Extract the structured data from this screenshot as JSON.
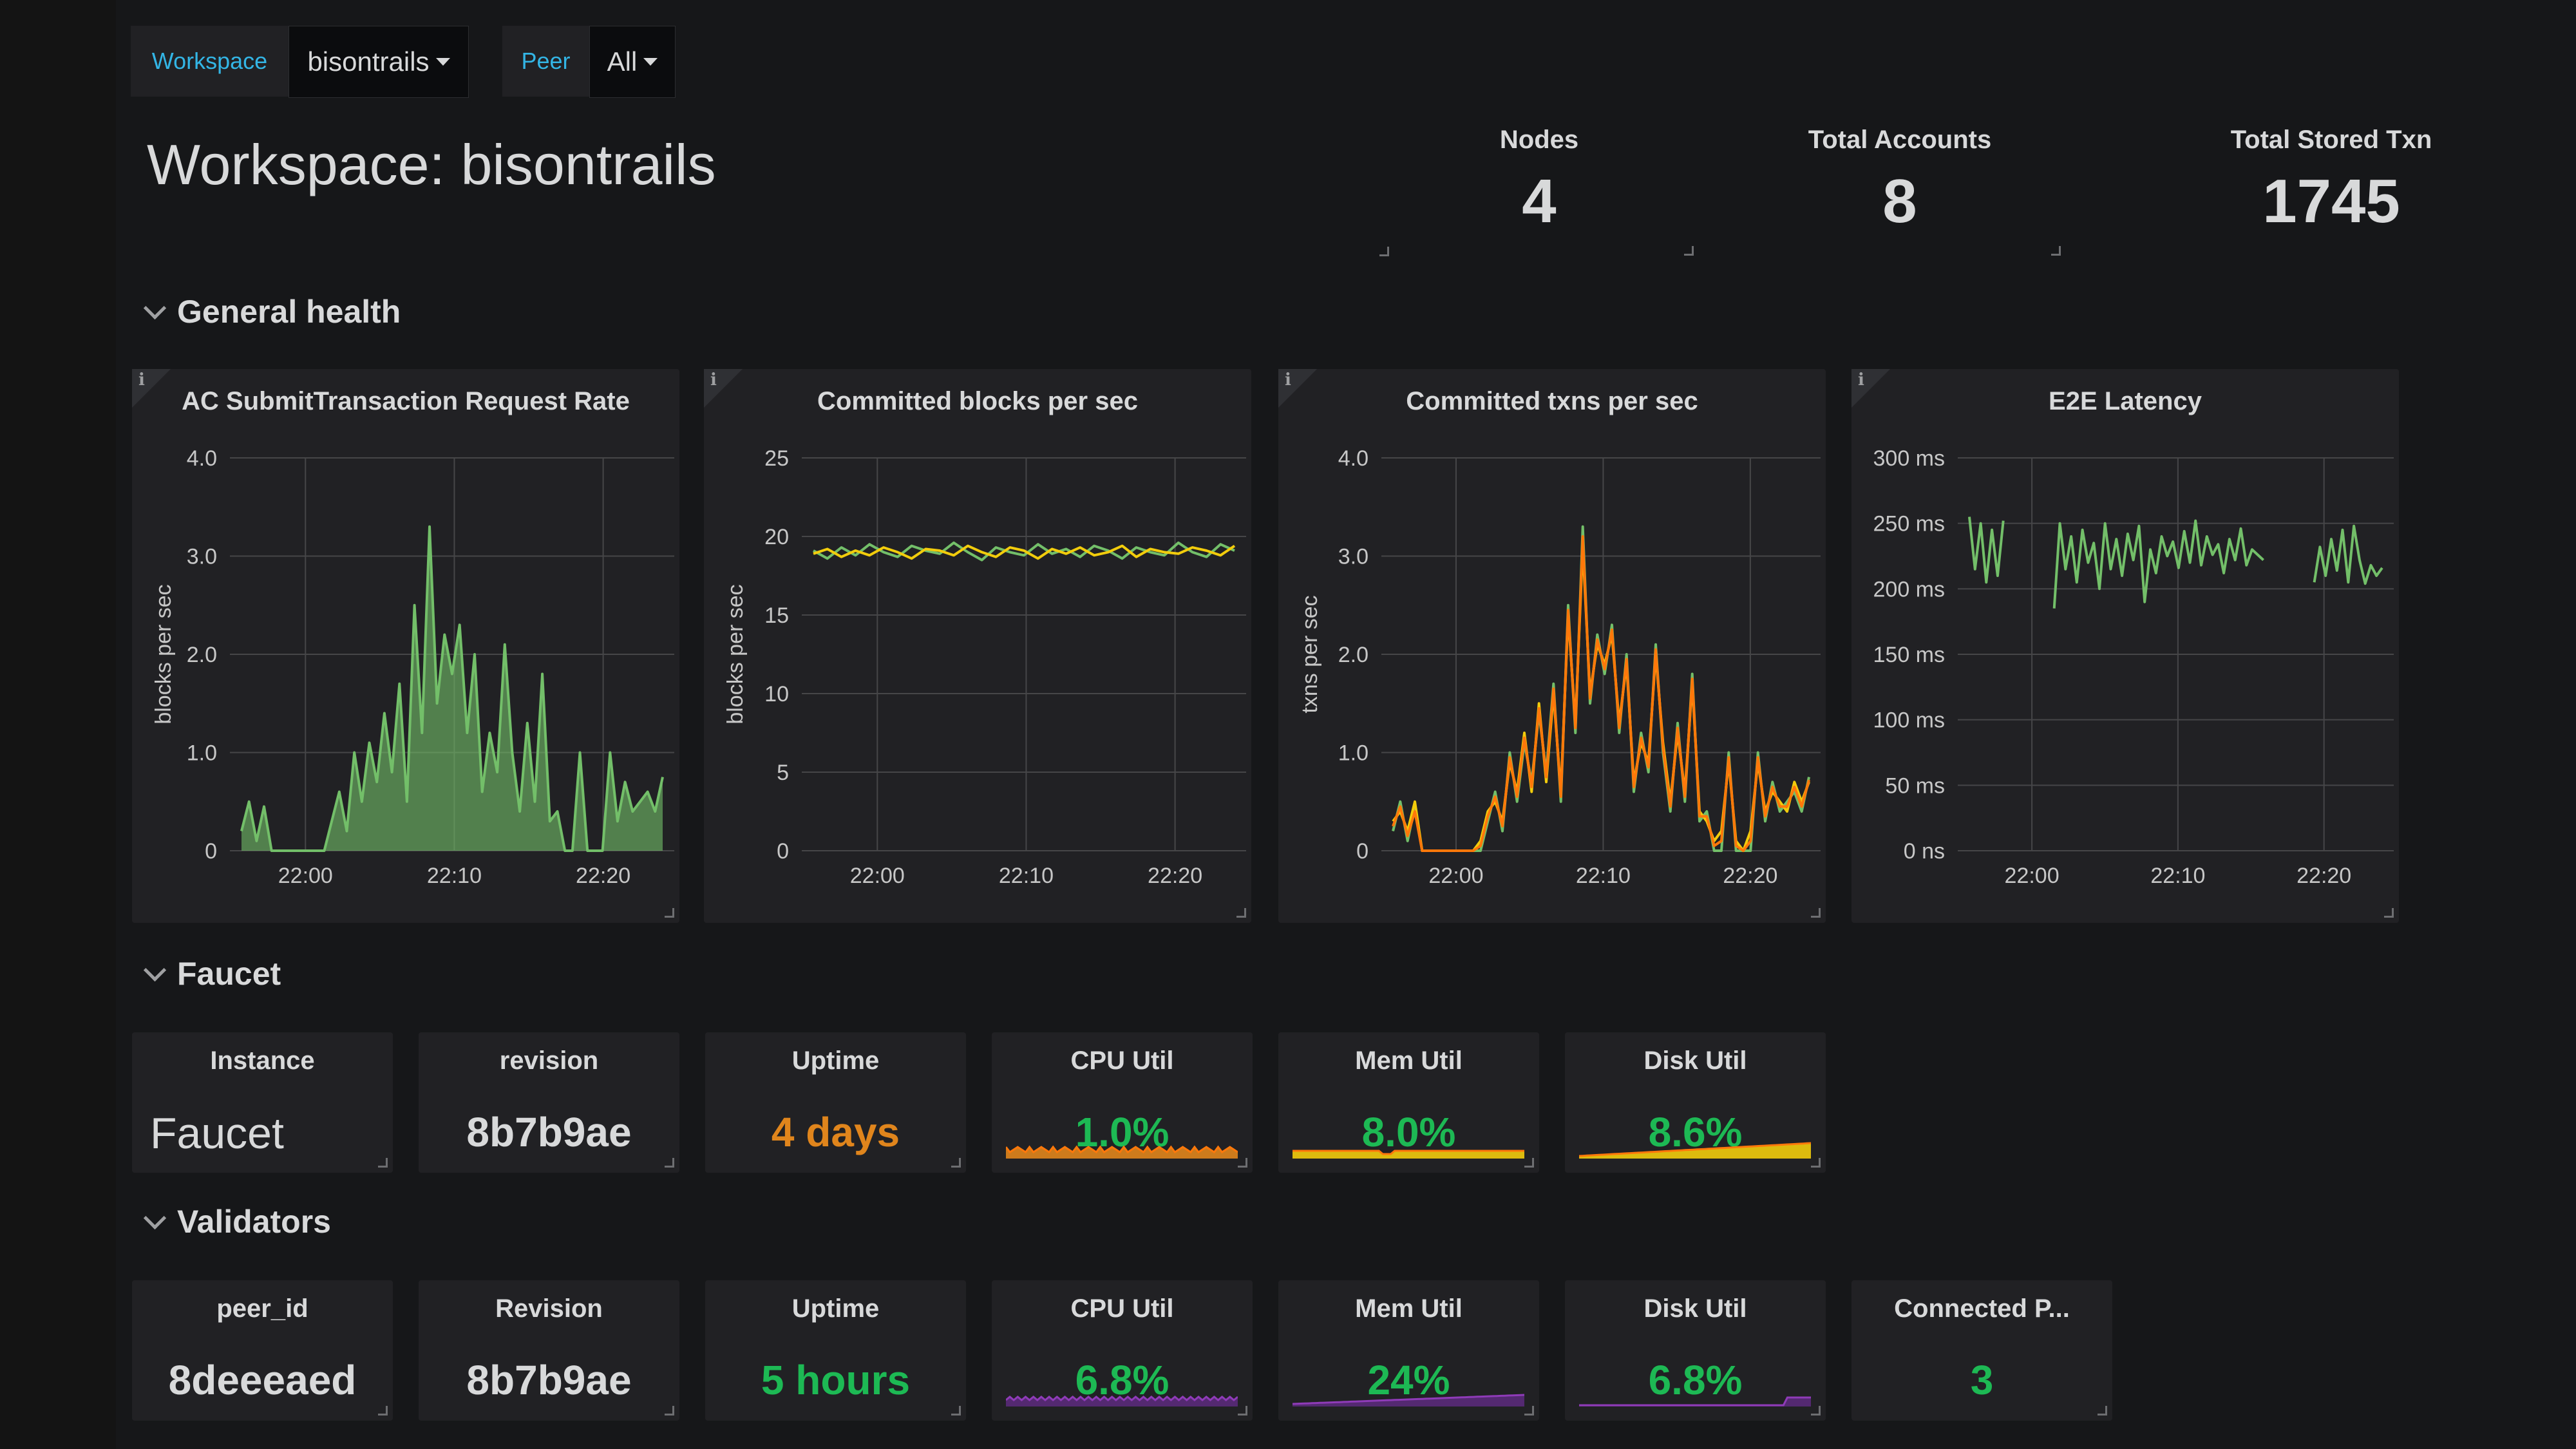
{
  "variables": [
    {
      "label": "Workspace",
      "value": "bisontrails"
    },
    {
      "label": "Peer",
      "value": "All"
    }
  ],
  "dashboard_title": "Workspace: bisontrails",
  "stats": [
    {
      "title": "Nodes",
      "value": "4"
    },
    {
      "title": "Total Accounts",
      "value": "8"
    },
    {
      "title": "Total Stored Txn",
      "value": "1745"
    }
  ],
  "rows": {
    "general": "General health",
    "faucet": "Faucet",
    "validators": "Validators"
  },
  "colors": {
    "green": "#73bf69",
    "green_text": "#1db954",
    "yellow": "#f2cc0c",
    "orange": "#ff780a",
    "uptime_orange": "#e0851c",
    "purple": "#8f3bb8",
    "grid": "#464648",
    "axis_text": "#c7c7c7"
  },
  "chart_data": [
    {
      "type": "area",
      "title": "AC SubmitTransaction Request Rate",
      "ylabel": "blocks per sec",
      "yticks": [
        "0",
        "1.0",
        "2.0",
        "3.0",
        "4.0"
      ],
      "ylim": [
        0,
        4
      ],
      "xticks": [
        "22:00",
        "22:10",
        "22:20"
      ],
      "series": [
        {
          "color": "#73bf69",
          "fill": true,
          "x": [
            0,
            0.5,
            1,
            1.5,
            2,
            2.5,
            3,
            3.5,
            4,
            5,
            6,
            7,
            8,
            8.5,
            9,
            9.5,
            10,
            10.5,
            11,
            11.5,
            12,
            12.5,
            13,
            13.5,
            14,
            14.5,
            15,
            15.5,
            16,
            16.5,
            17,
            17.5,
            18,
            18.5,
            19,
            19.5,
            20,
            20.5,
            21,
            21.5,
            22,
            22.5,
            23,
            23.5,
            24,
            24.5,
            25,
            25.5,
            26,
            26.5,
            27,
            27.5,
            28,
            28.5,
            29,
            29.5,
            30
          ],
          "values": [
            0.2,
            0.5,
            0.1,
            0.45,
            0.0,
            0.0,
            0.0,
            0.0,
            0.0,
            0.0,
            0.0,
            0.0,
            0.3,
            0.6,
            0.2,
            1.0,
            0.5,
            1.1,
            0.7,
            1.4,
            0.8,
            1.7,
            0.5,
            2.5,
            1.2,
            3.3,
            1.5,
            2.2,
            1.8,
            2.3,
            1.2,
            2.0,
            0.6,
            1.2,
            0.8,
            2.1,
            1.0,
            0.4,
            1.3,
            0.5,
            1.8,
            0.3,
            0.4,
            0.0,
            0.0,
            1.0,
            0.0,
            0.0,
            0.0,
            1.0,
            0.3,
            0.7,
            0.4,
            0.5,
            0.6,
            0.4,
            0.75
          ]
        }
      ]
    },
    {
      "type": "line",
      "title": "Committed blocks per sec",
      "ylabel": "blocks per sec",
      "yticks": [
        "0",
        "5",
        "10",
        "15",
        "20",
        "25"
      ],
      "ylim": [
        0,
        25
      ],
      "xticks": [
        "22:00",
        "22:10",
        "22:20"
      ],
      "series": [
        {
          "color": "#73bf69",
          "values": [
            19.1,
            18.6,
            19.3,
            18.8,
            19.5,
            19.0,
            18.7,
            19.4,
            19.1,
            18.9,
            19.6,
            19.0,
            18.5,
            19.3,
            19.0,
            18.8,
            19.5,
            18.9,
            19.2,
            18.7,
            19.4,
            19.1,
            18.6,
            19.3,
            19.0,
            18.8,
            19.6,
            19.0,
            18.7,
            19.5,
            19.1
          ]
        },
        {
          "color": "#f2cc0c",
          "values": [
            18.9,
            19.2,
            18.7,
            19.1,
            18.8,
            19.3,
            19.0,
            18.6,
            19.2,
            19.1,
            18.8,
            19.4,
            19.0,
            18.7,
            19.3,
            19.1,
            18.6,
            19.2,
            18.9,
            19.3,
            18.8,
            19.0,
            19.4,
            18.7,
            19.2,
            19.0,
            18.9,
            19.3,
            19.1,
            18.8,
            19.4
          ]
        }
      ]
    },
    {
      "type": "line",
      "title": "Committed txns per sec",
      "ylabel": "txns per sec",
      "yticks": [
        "0",
        "1.0",
        "2.0",
        "3.0",
        "4.0"
      ],
      "ylim": [
        0,
        4
      ],
      "xticks": [
        "22:00",
        "22:10",
        "22:20"
      ],
      "series": [
        {
          "color": "#73bf69",
          "values": [
            0.2,
            0.5,
            0.1,
            0.45,
            0.0,
            0.0,
            0.0,
            0.0,
            0.0,
            0.0,
            0.0,
            0.0,
            0.0,
            0.3,
            0.6,
            0.2,
            1.0,
            0.5,
            1.1,
            0.7,
            1.4,
            0.8,
            1.7,
            0.5,
            2.5,
            1.2,
            3.3,
            1.5,
            2.2,
            1.8,
            2.3,
            1.2,
            2.0,
            0.6,
            1.2,
            0.8,
            2.1,
            1.0,
            0.4,
            1.3,
            0.5,
            1.8,
            0.3,
            0.4,
            0.0,
            0.0,
            1.0,
            0.0,
            0.0,
            0.0,
            1.0,
            0.3,
            0.7,
            0.4,
            0.5,
            0.6,
            0.4,
            0.75
          ]
        },
        {
          "color": "#f2cc0c",
          "values": [
            0.3,
            0.4,
            0.2,
            0.5,
            0.0,
            0.0,
            0.0,
            0.0,
            0.0,
            0.0,
            0.0,
            0.0,
            0.1,
            0.4,
            0.5,
            0.3,
            0.9,
            0.6,
            1.2,
            0.6,
            1.5,
            0.7,
            1.6,
            0.6,
            2.4,
            1.3,
            3.1,
            1.6,
            2.1,
            1.9,
            2.2,
            1.3,
            1.9,
            0.7,
            1.1,
            0.9,
            2.0,
            1.1,
            0.5,
            1.2,
            0.6,
            1.7,
            0.4,
            0.3,
            0.1,
            0.2,
            0.9,
            0.1,
            0.0,
            0.2,
            0.9,
            0.4,
            0.6,
            0.5,
            0.4,
            0.7,
            0.5,
            0.7
          ]
        },
        {
          "color": "#ff780a",
          "values": [
            0.25,
            0.45,
            0.15,
            0.4,
            0.0,
            0.0,
            0.0,
            0.0,
            0.0,
            0.0,
            0.0,
            0.0,
            0.05,
            0.35,
            0.55,
            0.25,
            0.95,
            0.55,
            1.15,
            0.65,
            1.45,
            0.75,
            1.65,
            0.55,
            2.45,
            1.25,
            3.2,
            1.55,
            2.15,
            1.85,
            2.25,
            1.25,
            1.95,
            0.65,
            1.15,
            0.85,
            2.05,
            1.05,
            0.45,
            1.25,
            0.55,
            1.75,
            0.35,
            0.35,
            0.05,
            0.1,
            0.95,
            0.05,
            0.0,
            0.1,
            0.95,
            0.35,
            0.65,
            0.45,
            0.45,
            0.65,
            0.45,
            0.72
          ]
        }
      ]
    },
    {
      "type": "line",
      "title": "E2E Latency",
      "yticks": [
        "0 ns",
        "50 ms",
        "100 ms",
        "150 ms",
        "200 ms",
        "250 ms",
        "300 ms"
      ],
      "ylim": [
        0,
        300
      ],
      "xticks": [
        "22:00",
        "22:10",
        "22:20"
      ],
      "series": [
        {
          "color": "#73bf69",
          "segments": [
            [
              255,
              215,
              250,
              205,
              245,
              210,
              252
            ],
            [
              185,
              250,
              215,
              240,
              205,
              245,
              220,
              235,
              200,
              250,
              215,
              238,
              210,
              242,
              222,
              248,
              190,
              230,
              212,
              240,
              225,
              236,
              216,
              244,
              220,
              252,
              218,
              240,
              226,
              234,
              212,
              238,
              222,
              246,
              218,
              230,
              226,
              222
            ],
            [
              205,
              232,
              210,
              238,
              214,
              245,
              205,
              248,
              222,
              204,
              218,
              210,
              216
            ]
          ]
        }
      ]
    }
  ],
  "faucet": [
    {
      "title": "Instance",
      "value": "Faucet",
      "color": "#d8d9da",
      "spark": null
    },
    {
      "title": "revision",
      "value": "8b7b9ae",
      "color": "#d8d9da",
      "spark": null
    },
    {
      "title": "Uptime",
      "value": "4 days",
      "color": "#e0851c",
      "spark": null
    },
    {
      "title": "CPU Util",
      "value": "1.0%",
      "color": "#1db954",
      "spark": {
        "kind": "spiky",
        "line": "#ff780a",
        "fill": "#e0851c"
      }
    },
    {
      "title": "Mem Util",
      "value": "8.0%",
      "color": "#1db954",
      "spark": {
        "kind": "flat",
        "line": "#ff780a",
        "fill": "#f2cc0c"
      }
    },
    {
      "title": "Disk Util",
      "value": "8.6%",
      "color": "#1db954",
      "spark": {
        "kind": "ramp",
        "line": "#ff780a",
        "fill": "#f2cc0c"
      }
    }
  ],
  "validators": [
    {
      "title": "peer_id",
      "value": "8deeeaed",
      "color": "#d8d9da",
      "spark": null
    },
    {
      "title": "Revision",
      "value": "8b7b9ae",
      "color": "#d8d9da",
      "spark": null
    },
    {
      "title": "Uptime",
      "value": "5 hours",
      "color": "#1db954",
      "spark": null
    },
    {
      "title": "CPU Util",
      "value": "6.8%",
      "color": "#1db954",
      "spark": {
        "kind": "purple-flat",
        "line": "#8f3bb8",
        "fill": "#5a2a7a"
      }
    },
    {
      "title": "Mem Util",
      "value": "24%",
      "color": "#1db954",
      "spark": {
        "kind": "purple-ramp",
        "line": "#8f3bb8",
        "fill": "#5a2a7a"
      }
    },
    {
      "title": "Disk Util",
      "value": "6.8%",
      "color": "#1db954",
      "spark": {
        "kind": "purple-tail",
        "line": "#8f3bb8",
        "fill": "#5a2a7a"
      }
    },
    {
      "title": "Connected P...",
      "value": "3",
      "color": "#1db954",
      "spark": null
    }
  ]
}
